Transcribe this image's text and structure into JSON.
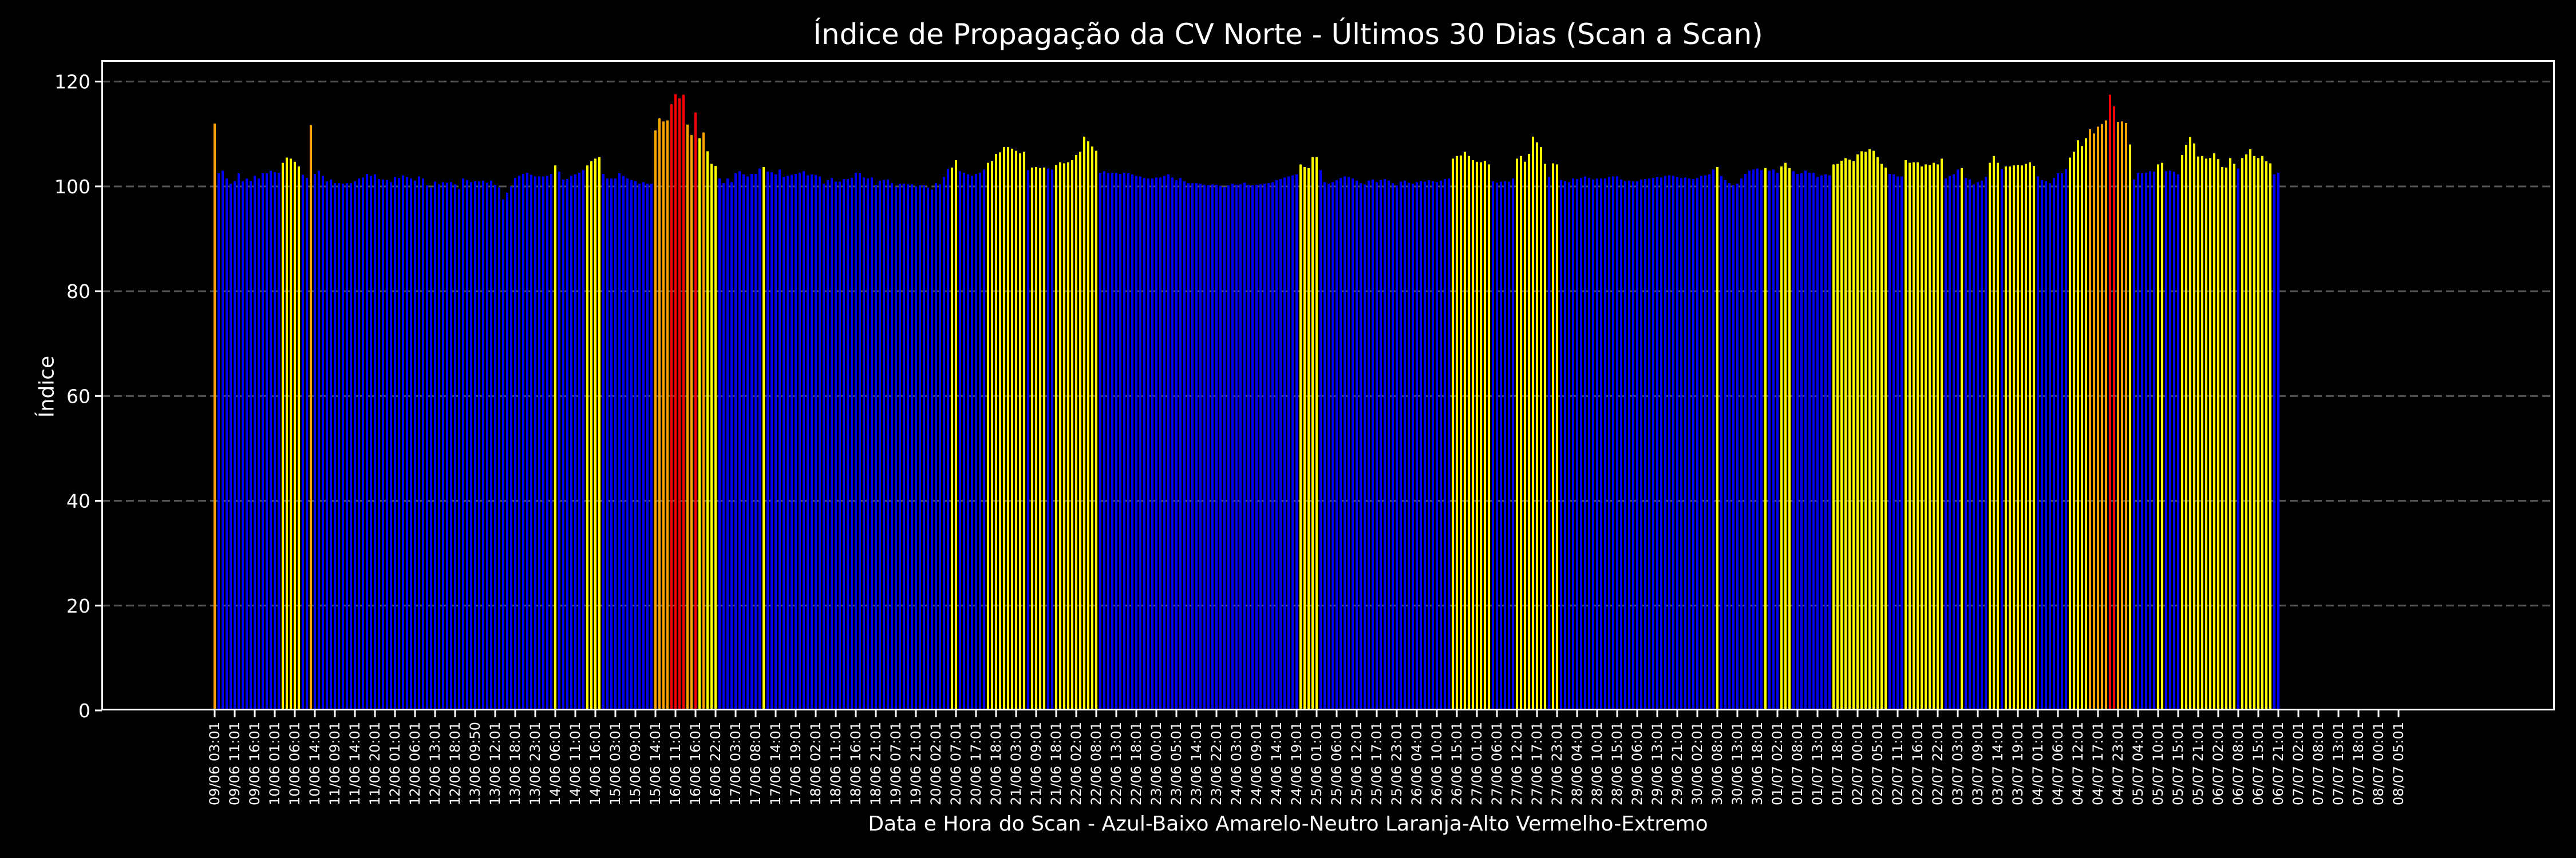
{
  "chart_data": {
    "type": "bar",
    "title": "Índice de Propagação da CV Norte - Últimos 30 Dias (Scan a Scan)",
    "xlabel": "Data e Hora do Scan - Azul-Baixo Amarelo-Neutro Laranja-Alto Vermelho-Extremo",
    "ylabel": "Índice",
    "ylim": [
      0,
      124
    ],
    "yticks": [
      0,
      20,
      40,
      60,
      80,
      100,
      120
    ],
    "grid": {
      "y": true,
      "style": "dashed",
      "color": "#555555"
    },
    "legend": null,
    "color_scale": [
      {
        "name": "Azul-Baixo",
        "color": "#0000ff",
        "max": 103.5
      },
      {
        "name": "Amarelo-Neutro",
        "color": "#ffff00",
        "max": 109.8
      },
      {
        "name": "Laranja-Alto",
        "color": "#ffa500",
        "max": 114
      },
      {
        "name": "Vermelho-Extremo",
        "color": "#ff0000",
        "max": 999
      }
    ],
    "tick_every": 5,
    "tick_labels": [
      "09/06 03:01",
      "09/06 11:01",
      "09/06 16:01",
      "10/06 01:01",
      "10/06 06:01",
      "10/06 14:01",
      "11/06 09:01",
      "11/06 14:01",
      "11/06 20:01",
      "12/06 01:01",
      "12/06 06:01",
      "12/06 13:01",
      "12/06 18:01",
      "13/06 09:50",
      "13/06 12:01",
      "13/06 18:01",
      "13/06 23:01",
      "14/06 06:01",
      "14/06 11:01",
      "14/06 16:01",
      "15/06 03:01",
      "15/06 09:01",
      "15/06 14:01",
      "16/06 11:01",
      "16/06 16:01",
      "16/06 22:01",
      "17/06 03:01",
      "17/06 08:01",
      "17/06 14:01",
      "17/06 19:01",
      "18/06 02:01",
      "18/06 11:01",
      "18/06 16:01",
      "18/06 21:01",
      "19/06 07:01",
      "19/06 21:01",
      "20/06 02:01",
      "20/06 07:01",
      "20/06 17:01",
      "20/06 18:01",
      "21/06 03:01",
      "21/06 09:01",
      "21/06 18:01",
      "22/06 02:01",
      "22/06 08:01",
      "22/06 13:01",
      "22/06 18:01",
      "23/06 00:01",
      "23/06 05:01",
      "23/06 14:01",
      "23/06 22:01",
      "24/06 03:01",
      "24/06 09:01",
      "24/06 14:01",
      "24/06 19:01",
      "25/06 01:01",
      "25/06 06:01",
      "25/06 12:01",
      "25/06 17:01",
      "25/06 23:01",
      "26/06 04:01",
      "26/06 10:01",
      "26/06 15:01",
      "27/06 01:01",
      "27/06 06:01",
      "27/06 12:01",
      "27/06 17:01",
      "27/06 23:01",
      "28/06 04:01",
      "28/06 10:01",
      "28/06 15:01",
      "29/06 06:01",
      "29/06 13:01",
      "29/06 21:01",
      "30/06 02:01",
      "30/06 08:01",
      "30/06 13:01",
      "30/06 18:01",
      "01/07 02:01",
      "01/07 08:01",
      "01/07 13:01",
      "01/07 18:01",
      "02/07 00:01",
      "02/07 05:01",
      "02/07 11:01",
      "02/07 16:01",
      "02/07 22:01",
      "03/07 03:01",
      "03/07 09:01",
      "03/07 14:01",
      "03/07 19:01",
      "04/07 01:01",
      "04/07 06:01",
      "04/07 12:01",
      "04/07 17:01",
      "04/07 23:01",
      "05/07 04:01",
      "05/07 10:01",
      "05/07 15:01",
      "05/07 21:01",
      "06/07 02:01",
      "06/07 08:01",
      "06/07 15:01",
      "06/07 21:01",
      "07/07 02:01",
      "07/07 08:01",
      "07/07 13:01",
      "07/07 18:01",
      "08/07 00:01",
      "08/07 05:01"
    ],
    "values": [
      112,
      102.5,
      103,
      101.5,
      100.5,
      101,
      102.5,
      101,
      101.5,
      101,
      102,
      101.5,
      102.5,
      102.5,
      103,
      102.7,
      102.6,
      104.5,
      105.5,
      105.3,
      104.7,
      103.8,
      102.2,
      101.6,
      111.7,
      102.4,
      103,
      102,
      101,
      101.3,
      100.6,
      100.6,
      100.5,
      100.6,
      100.6,
      101,
      101.5,
      101.7,
      102.4,
      102,
      102.3,
      101.4,
      101.3,
      101.2,
      100.8,
      101.8,
      101.6,
      102.1,
      101.8,
      101.5,
      101.1,
      101.9,
      101.5,
      100.2,
      99.8,
      100.9,
      100.4,
      100.8,
      100.7,
      100.8,
      100.4,
      99.5,
      101.5,
      101.2,
      100.8,
      101,
      101,
      101.1,
      100.7,
      101.1,
      100.3,
      99.8,
      97.5,
      98.8,
      100,
      101.6,
      102,
      102.4,
      102.6,
      102.2,
      101.9,
      101.9,
      101.9,
      102,
      102.4,
      104,
      102.8,
      101.3,
      101.4,
      102,
      102.3,
      102.6,
      103.1,
      104,
      104.8,
      105.3,
      105.6,
      102.4,
      101.5,
      101.5,
      101.5,
      102.5,
      102,
      101.5,
      101.2,
      101,
      100.5,
      100.8,
      100.5,
      100.5,
      110.7,
      113,
      112.4,
      112.6,
      115.7,
      117.6,
      116.8,
      117.5,
      111.8,
      109.8,
      114.1,
      109.2,
      110.3,
      106.7,
      104.3,
      103.9,
      101.5,
      100.6,
      101.5,
      100.8,
      102.5,
      102.9,
      102.3,
      101.9,
      102.4,
      102.4,
      103.4,
      103.7,
      102.8,
      102.7,
      102.3,
      103.2,
      101.8,
      102,
      102.2,
      102.4,
      102.6,
      102.9,
      102.1,
      102.3,
      102.2,
      101.9,
      100.5,
      101.2,
      101.6,
      100.9,
      100.9,
      101.4,
      101.4,
      101.6,
      102.6,
      102.5,
      101.7,
      101.5,
      101.7,
      100.3,
      101.1,
      101.2,
      101.3,
      100.6,
      99.9,
      100.5,
      100.5,
      100.4,
      100.4,
      100,
      100.2,
      100.2,
      99.8,
      99.4,
      100.6,
      100.4,
      101.8,
      103.3,
      103.6,
      105,
      102.9,
      102.6,
      102.3,
      102,
      102.4,
      102.6,
      103.2,
      104.5,
      104.8,
      106.2,
      106.5,
      107.5,
      107.5,
      107.2,
      106.8,
      106.3,
      106.6,
      103.1,
      103.6,
      103.7,
      103.5,
      103.6,
      103.4,
      103.2,
      104.1,
      104.6,
      104.4,
      104.6,
      105,
      106,
      106.6,
      109.5,
      108.6,
      107.6,
      106.8,
      102.6,
      102.9,
      102.5,
      102.6,
      102.6,
      102.4,
      102.6,
      102.5,
      102.3,
      102,
      101.9,
      101.6,
      101.5,
      101.5,
      101.7,
      101.7,
      102,
      102.3,
      101.7,
      101.2,
      101.6,
      101,
      100.6,
      100.6,
      100.6,
      100.5,
      100.3,
      100.2,
      100.4,
      100.3,
      100.1,
      99.9,
      100.2,
      100.5,
      100.3,
      100.4,
      100.7,
      100.3,
      100.2,
      100.3,
      100.4,
      100.5,
      100.6,
      100.8,
      101.2,
      101.4,
      101.7,
      101.9,
      102.1,
      102.3,
      104.2,
      103.7,
      103.5,
      105.6,
      105.6,
      103.1,
      100.8,
      100.5,
      100.8,
      101.2,
      101.6,
      101.9,
      101.8,
      101.5,
      101.1,
      100.6,
      100.4,
      101.1,
      101.3,
      100.8,
      101.2,
      101.4,
      101.1,
      100.6,
      100.2,
      100.9,
      101.1,
      100.7,
      100.5,
      100.8,
      101,
      100.9,
      101.2,
      101,
      100.8,
      101.1,
      101.4,
      101.5,
      105.3,
      105.8,
      105.9,
      106.6,
      105.8,
      105,
      104.7,
      104.6,
      104.9,
      104.2,
      101,
      100.7,
      100.9,
      101,
      100.9,
      101.5,
      105.3,
      105.8,
      104.7,
      106.2,
      109.5,
      108.4,
      107.5,
      104.3,
      101.8,
      104.4,
      104.2,
      101.2,
      101,
      100.8,
      101.5,
      101.4,
      101.6,
      101.9,
      101.6,
      101.3,
      101.5,
      101.5,
      101.5,
      101.8,
      101.9,
      101.9,
      101.3,
      101,
      101.1,
      101,
      101,
      101.3,
      101.4,
      101.5,
      101.6,
      101.8,
      101.7,
      102,
      102.1,
      102,
      101.8,
      101.6,
      101.7,
      101.5,
      101.4,
      101.6,
      102,
      102.1,
      102.3,
      103.2,
      103.7,
      102,
      101.2,
      100.6,
      100.2,
      100.5,
      101.5,
      102.4,
      103,
      103.2,
      103.4,
      103.1,
      103.5,
      103,
      103.2,
      102.6,
      103.8,
      104.5,
      103.5,
      102.9,
      102.4,
      102.5,
      103,
      102.6,
      102.6,
      101.8,
      102.1,
      102.3,
      102.1,
      104.2,
      104.3,
      104.9,
      105.4,
      105.1,
      104.8,
      106.1,
      106.7,
      106.6,
      107.1,
      106.8,
      105.6,
      104.3,
      103.6,
      102.4,
      102.3,
      101.9,
      101.9,
      105,
      104.5,
      104.6,
      104.6,
      103.8,
      104.2,
      104.1,
      104.5,
      104.2,
      105.3,
      101.5,
      102,
      102.3,
      103.2,
      103.5,
      101.6,
      101.3,
      100.4,
      100.8,
      101.1,
      101.8,
      104.5,
      105.8,
      104.5,
      103.3,
      103.8,
      103.8,
      104,
      104.1,
      104,
      104.3,
      104.6,
      103.9,
      101.9,
      101.2,
      101,
      100.6,
      101.6,
      102.5,
      102.5,
      103.3,
      105.5,
      106.6,
      108.8,
      107.7,
      109.2,
      110.9,
      110.1,
      111.4,
      111.9,
      112.6,
      117.5,
      115.3,
      112.3,
      112.4,
      112.1,
      108,
      101.3,
      102.6,
      102.5,
      102.6,
      102.9,
      102.8,
      104.2,
      104.5,
      102.9,
      103,
      102.8,
      102.3,
      106,
      107.9,
      109.4,
      108.2,
      105.7,
      105.8,
      105.3,
      105.4,
      106.3,
      105.2,
      103.7,
      103.6,
      105.4,
      104.3,
      103.4,
      105.4,
      106.1,
      107.1,
      105.8,
      105.4,
      105.8,
      104.8,
      104.4,
      102.3,
      102.6
    ]
  }
}
